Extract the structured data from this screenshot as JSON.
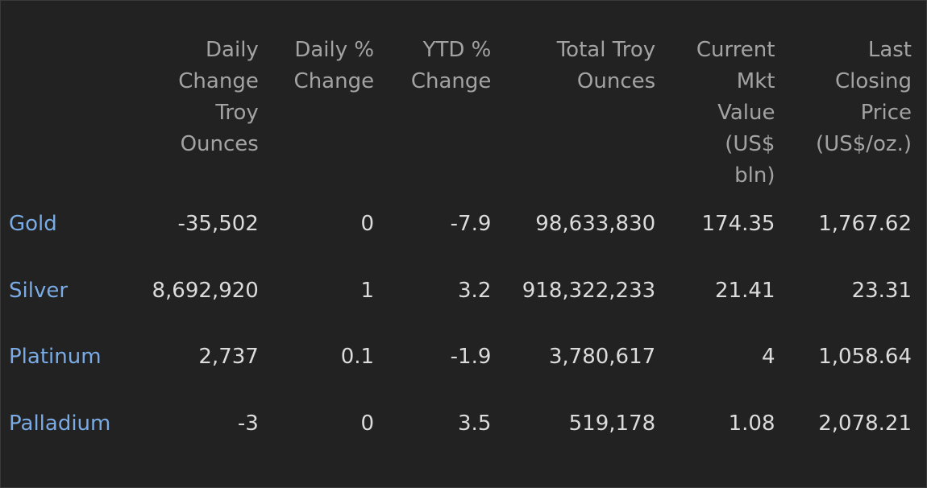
{
  "table": {
    "headers": [
      "",
      "Daily\nChange\nTroy\nOunces",
      "Daily %\nChange",
      "YTD %\nChange",
      "Total Troy\nOunces",
      "Current\nMkt\nValue\n(US$\nbln)",
      "Last\nClosing\nPrice\n(US$/oz.)"
    ],
    "rows": [
      [
        "Gold",
        "-35,502",
        "0",
        "-7.9",
        "98,633,830",
        "174.35",
        "1,767.62"
      ],
      [
        "Silver",
        "8,692,920",
        "1",
        "3.2",
        "918,322,233",
        "21.41",
        "23.31"
      ],
      [
        "Platinum",
        "2,737",
        "0.1",
        "-1.9",
        "3,780,617",
        "4",
        "1,058.64"
      ],
      [
        "Palladium",
        "-3",
        "0",
        "3.5",
        "519,178",
        "1.08",
        "2,078.21"
      ]
    ]
  },
  "colors": {
    "background": "#222222",
    "header_text": "#a3a3a3",
    "cell_text": "#dcdcdc",
    "link_text": "#7aabe5"
  }
}
